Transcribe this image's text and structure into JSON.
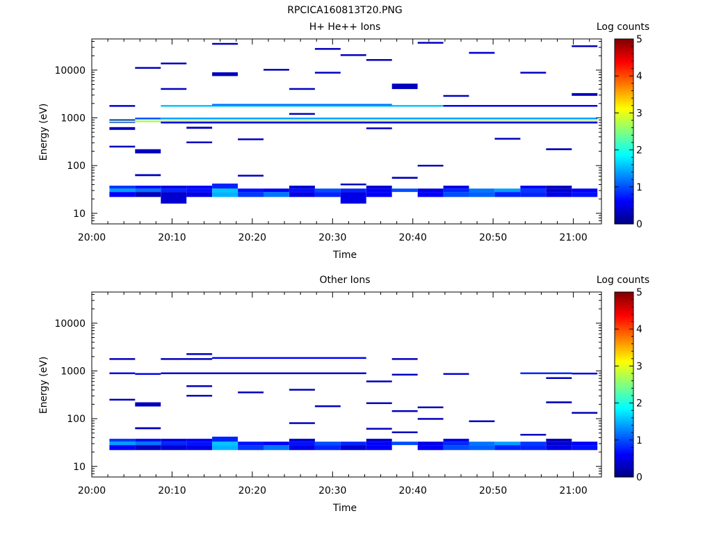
{
  "figure": {
    "title": "RPCICA160813T20.PNG"
  },
  "chart_data": [
    {
      "type": "heatmap",
      "title": "H+ He++ Ions",
      "xlabel": "Time",
      "ylabel": "Energy (eV)",
      "x_ticks": [
        "20:00",
        "20:10",
        "20:20",
        "20:30",
        "20:40",
        "20:50",
        "21:00"
      ],
      "x_tick_minutes": [
        0,
        10,
        20,
        30,
        40,
        50,
        60
      ],
      "xlim_minutes": [
        0,
        63.5
      ],
      "y_scale": "log",
      "ylim": [
        6,
        45000
      ],
      "y_ticks": [
        10,
        100,
        1000,
        10000
      ],
      "y_tick_labels": [
        "10",
        "100",
        "1000",
        "10000"
      ],
      "colorbar": {
        "label": "Log counts",
        "range": [
          0,
          5
        ],
        "ticks": [
          "0",
          "1",
          "2",
          "3",
          "4",
          "5"
        ]
      },
      "time_bins_minutes": [
        2.2,
        5.4,
        8.6,
        11.8,
        15.0,
        18.2,
        21.4,
        24.6,
        27.8,
        31.0,
        34.2,
        37.4,
        40.6,
        43.8,
        47.0,
        50.2,
        53.4,
        56.6,
        59.8,
        63.0
      ],
      "cells": [
        [
          2.2,
          5.4,
          22,
          28,
          0.6
        ],
        [
          5.4,
          8.6,
          22,
          28,
          0.3
        ],
        [
          8.6,
          11.8,
          16,
          28,
          0.4
        ],
        [
          11.8,
          15.0,
          22,
          28,
          0.5
        ],
        [
          15.0,
          18.2,
          22,
          28,
          1.5
        ],
        [
          18.2,
          21.4,
          22,
          28,
          0.9
        ],
        [
          21.4,
          24.6,
          22,
          28,
          1.2
        ],
        [
          24.6,
          27.8,
          22,
          28,
          0.5
        ],
        [
          27.8,
          31.0,
          22,
          28,
          0.8
        ],
        [
          31.0,
          34.2,
          16,
          28,
          0.5
        ],
        [
          34.2,
          37.4,
          22,
          28,
          0.6
        ],
        [
          40.6,
          43.8,
          22,
          28,
          0.6
        ],
        [
          43.8,
          47.0,
          22,
          28,
          1.0
        ],
        [
          47.0,
          50.2,
          22,
          28,
          1.1
        ],
        [
          50.2,
          53.4,
          22,
          28,
          0.8
        ],
        [
          53.4,
          56.6,
          22,
          28,
          0.8
        ],
        [
          56.6,
          59.8,
          22,
          28,
          0.5
        ],
        [
          59.8,
          63.0,
          22,
          28,
          0.7
        ],
        [
          2.2,
          5.4,
          28,
          33,
          1.4
        ],
        [
          5.4,
          8.6,
          28,
          33,
          1.2
        ],
        [
          8.6,
          11.8,
          28,
          33,
          0.8
        ],
        [
          11.8,
          15.0,
          28,
          33,
          0.7
        ],
        [
          15.0,
          18.2,
          28,
          33,
          1.6
        ],
        [
          18.2,
          21.4,
          28,
          33,
          0.7
        ],
        [
          21.4,
          24.6,
          28,
          33,
          0.6
        ],
        [
          24.6,
          27.8,
          28,
          33,
          0.7
        ],
        [
          27.8,
          31.0,
          28,
          33,
          1.0
        ],
        [
          31.0,
          34.2,
          28,
          33,
          0.8
        ],
        [
          34.2,
          37.4,
          28,
          33,
          0.6
        ],
        [
          37.4,
          40.6,
          28,
          33,
          1.0
        ],
        [
          40.6,
          43.8,
          28,
          33,
          0.5
        ],
        [
          43.8,
          47.0,
          28,
          33,
          0.8
        ],
        [
          47.0,
          50.2,
          28,
          33,
          1.2
        ],
        [
          50.2,
          53.4,
          28,
          33,
          1.4
        ],
        [
          53.4,
          56.6,
          28,
          33,
          0.9
        ],
        [
          56.6,
          59.8,
          28,
          33,
          0.4
        ],
        [
          59.8,
          63.0,
          28,
          33,
          0.6
        ],
        [
          2.2,
          5.4,
          33,
          38,
          0.9
        ],
        [
          5.4,
          8.6,
          33,
          38,
          0.7
        ],
        [
          8.6,
          11.8,
          33,
          38,
          0.5
        ],
        [
          11.8,
          15.0,
          33,
          38,
          0.6
        ],
        [
          15.0,
          18.2,
          33,
          42,
          0.8
        ],
        [
          24.6,
          27.8,
          33,
          38,
          0.4
        ],
        [
          34.2,
          37.4,
          33,
          38,
          0.4
        ],
        [
          43.8,
          47.0,
          33,
          38,
          0.5
        ],
        [
          53.4,
          56.6,
          33,
          38,
          0.6
        ],
        [
          56.6,
          59.8,
          33,
          38,
          0.3
        ],
        [
          2.2,
          5.4,
          780,
          930,
          0.7
        ],
        [
          2.2,
          5.4,
          840,
          880,
          2.6
        ],
        [
          5.4,
          63.0,
          840,
          880,
          2.7
        ],
        [
          8.6,
          63.0,
          930,
          1010,
          1.4
        ],
        [
          5.4,
          8.6,
          930,
          1010,
          1.0
        ],
        [
          8.6,
          63.0,
          780,
          830,
          0.5
        ],
        [
          8.6,
          43.8,
          1760,
          1860,
          1.6
        ],
        [
          15.0,
          37.4,
          1860,
          1960,
          1.2
        ],
        [
          43.8,
          63.0,
          1760,
          1860,
          0.6
        ],
        [
          2.2,
          5.4,
          1750,
          1850,
          0.4
        ],
        [
          2.2,
          5.4,
          240,
          260,
          0.3
        ],
        [
          2.2,
          5.4,
          560,
          640,
          0.3
        ],
        [
          5.4,
          8.6,
          180,
          220,
          0.3
        ],
        [
          5.4,
          8.6,
          60,
          66,
          0.3
        ],
        [
          5.4,
          8.6,
          11000,
          11600,
          0.3
        ],
        [
          8.6,
          11.8,
          13500,
          14400,
          0.3
        ],
        [
          8.6,
          11.8,
          3900,
          4200,
          0.3
        ],
        [
          11.8,
          15.0,
          300,
          320,
          0.3
        ],
        [
          11.8,
          15.0,
          590,
          650,
          0.3
        ],
        [
          15.0,
          18.2,
          35000,
          37000,
          0.3
        ],
        [
          15.0,
          18.2,
          7500,
          9000,
          0.3
        ],
        [
          18.2,
          21.4,
          340,
          370,
          0.3
        ],
        [
          18.2,
          21.4,
          60,
          64,
          0.3
        ],
        [
          21.4,
          24.6,
          10000,
          10600,
          0.3
        ],
        [
          24.6,
          27.8,
          1180,
          1260,
          0.3
        ],
        [
          24.6,
          27.8,
          3900,
          4200,
          0.3
        ],
        [
          27.8,
          31.0,
          27000,
          29000,
          0.3
        ],
        [
          27.8,
          31.0,
          8700,
          9200,
          0.3
        ],
        [
          31.0,
          34.2,
          20500,
          21500,
          0.3
        ],
        [
          31.0,
          34.2,
          39,
          42,
          0.3
        ],
        [
          34.2,
          37.4,
          16000,
          17000,
          0.3
        ],
        [
          34.2,
          37.4,
          590,
          630,
          0.3
        ],
        [
          37.4,
          40.6,
          4000,
          5200,
          0.3
        ],
        [
          37.4,
          40.6,
          53,
          58,
          0.3
        ],
        [
          40.6,
          43.8,
          37000,
          39000,
          0.3
        ],
        [
          40.6,
          43.8,
          98,
          104,
          0.3
        ],
        [
          43.8,
          47.0,
          2800,
          3000,
          0.3
        ],
        [
          47.0,
          50.2,
          22000,
          24000,
          0.4
        ],
        [
          50.2,
          53.4,
          350,
          380,
          0.3
        ],
        [
          53.4,
          56.6,
          8800,
          9200,
          0.3
        ],
        [
          56.6,
          59.8,
          210,
          230,
          0.3
        ],
        [
          59.8,
          63.0,
          31000,
          33000,
          0.3
        ],
        [
          59.8,
          63.0,
          2900,
          3300,
          0.3
        ]
      ]
    },
    {
      "type": "heatmap",
      "title": "Other Ions",
      "xlabel": "Time",
      "ylabel": "Energy (eV)",
      "x_ticks": [
        "20:00",
        "20:10",
        "20:20",
        "20:30",
        "20:40",
        "20:50",
        "21:00"
      ],
      "x_tick_minutes": [
        0,
        10,
        20,
        30,
        40,
        50,
        60
      ],
      "xlim_minutes": [
        0,
        63.5
      ],
      "y_scale": "log",
      "ylim": [
        6,
        45000
      ],
      "y_ticks": [
        10,
        100,
        1000,
        10000
      ],
      "y_tick_labels": [
        "10",
        "100",
        "1000",
        "10000"
      ],
      "colorbar": {
        "label": "Log counts",
        "range": [
          0,
          5
        ],
        "ticks": [
          "0",
          "1",
          "2",
          "3",
          "4",
          "5"
        ]
      },
      "time_bins_minutes": [
        2.2,
        5.4,
        8.6,
        11.8,
        15.0,
        18.2,
        21.4,
        24.6,
        27.8,
        31.0,
        34.2,
        37.4,
        40.6,
        43.8,
        47.0,
        50.2,
        53.4,
        56.6,
        59.8,
        63.0
      ],
      "cells": [
        [
          2.2,
          5.4,
          22,
          28,
          0.6
        ],
        [
          5.4,
          8.6,
          22,
          28,
          0.3
        ],
        [
          8.6,
          11.8,
          22,
          28,
          0.4
        ],
        [
          11.8,
          15.0,
          22,
          28,
          0.5
        ],
        [
          15.0,
          18.2,
          22,
          28,
          1.5
        ],
        [
          18.2,
          21.4,
          22,
          28,
          0.9
        ],
        [
          21.4,
          24.6,
          22,
          28,
          1.2
        ],
        [
          24.6,
          27.8,
          22,
          28,
          0.5
        ],
        [
          27.8,
          31.0,
          22,
          28,
          0.8
        ],
        [
          31.0,
          34.2,
          22,
          28,
          0.4
        ],
        [
          34.2,
          37.4,
          22,
          28,
          0.6
        ],
        [
          40.6,
          43.8,
          22,
          28,
          0.6
        ],
        [
          43.8,
          47.0,
          22,
          28,
          1.0
        ],
        [
          47.0,
          50.2,
          22,
          28,
          1.1
        ],
        [
          50.2,
          53.4,
          22,
          28,
          0.8
        ],
        [
          53.4,
          56.6,
          22,
          28,
          0.8
        ],
        [
          56.6,
          59.8,
          22,
          28,
          0.5
        ],
        [
          59.8,
          63.0,
          22,
          28,
          0.7
        ],
        [
          2.2,
          5.4,
          28,
          33,
          1.4
        ],
        [
          5.4,
          8.6,
          28,
          33,
          1.2
        ],
        [
          8.6,
          11.8,
          28,
          33,
          0.8
        ],
        [
          11.8,
          15.0,
          28,
          33,
          0.7
        ],
        [
          15.0,
          18.2,
          28,
          33,
          1.6
        ],
        [
          18.2,
          21.4,
          28,
          33,
          0.7
        ],
        [
          21.4,
          24.6,
          28,
          33,
          0.6
        ],
        [
          24.6,
          27.8,
          28,
          33,
          0.7
        ],
        [
          27.8,
          31.0,
          28,
          33,
          1.0
        ],
        [
          31.0,
          34.2,
          28,
          33,
          0.8
        ],
        [
          34.2,
          37.4,
          28,
          33,
          0.6
        ],
        [
          37.4,
          40.6,
          28,
          33,
          1.0
        ],
        [
          40.6,
          43.8,
          28,
          33,
          0.5
        ],
        [
          43.8,
          47.0,
          28,
          33,
          0.8
        ],
        [
          47.0,
          50.2,
          28,
          33,
          1.2
        ],
        [
          50.2,
          53.4,
          28,
          33,
          1.4
        ],
        [
          53.4,
          56.6,
          28,
          33,
          0.9
        ],
        [
          56.6,
          59.8,
          28,
          33,
          0.4
        ],
        [
          59.8,
          63.0,
          28,
          33,
          0.6
        ],
        [
          2.2,
          5.4,
          33,
          38,
          0.9
        ],
        [
          5.4,
          8.6,
          33,
          38,
          0.7
        ],
        [
          8.6,
          11.8,
          33,
          38,
          0.5
        ],
        [
          11.8,
          15.0,
          33,
          38,
          0.6
        ],
        [
          15.0,
          18.2,
          33,
          42,
          0.8
        ],
        [
          24.6,
          27.8,
          33,
          38,
          0.4
        ],
        [
          34.2,
          37.4,
          33,
          38,
          0.4
        ],
        [
          43.8,
          47.0,
          33,
          38,
          0.5
        ],
        [
          56.6,
          59.8,
          33,
          38,
          0.3
        ],
        [
          2.2,
          5.4,
          880,
          930,
          0.5
        ],
        [
          5.4,
          8.6,
          860,
          900,
          0.5
        ],
        [
          8.6,
          34.2,
          880,
          930,
          0.4
        ],
        [
          15.0,
          34.2,
          1850,
          1950,
          0.6
        ],
        [
          8.6,
          15.0,
          1750,
          1850,
          0.3
        ],
        [
          53.4,
          59.8,
          880,
          930,
          0.8
        ],
        [
          59.8,
          63.0,
          850,
          920,
          0.5
        ],
        [
          43.8,
          47.0,
          850,
          900,
          0.4
        ],
        [
          37.4,
          40.6,
          830,
          870,
          0.3
        ],
        [
          37.4,
          40.6,
          1750,
          1850,
          0.3
        ],
        [
          2.2,
          5.4,
          1750,
          1850,
          0.3
        ],
        [
          11.8,
          15.0,
          2200,
          2350,
          0.3
        ],
        [
          2.2,
          5.4,
          240,
          260,
          0.3
        ],
        [
          5.4,
          8.6,
          180,
          220,
          0.3
        ],
        [
          5.4,
          8.6,
          60,
          66,
          0.3
        ],
        [
          11.8,
          15.0,
          460,
          500,
          0.3
        ],
        [
          11.8,
          15.0,
          295,
          315,
          0.3
        ],
        [
          18.2,
          21.4,
          340,
          370,
          0.3
        ],
        [
          24.6,
          27.8,
          400,
          420,
          0.3
        ],
        [
          24.6,
          27.8,
          80,
          84,
          0.3
        ],
        [
          27.8,
          31.0,
          180,
          190,
          0.3
        ],
        [
          34.2,
          37.4,
          590,
          630,
          0.3
        ],
        [
          34.2,
          37.4,
          210,
          220,
          0.3
        ],
        [
          34.2,
          37.4,
          60,
          64,
          0.3
        ],
        [
          37.4,
          40.6,
          140,
          150,
          0.3
        ],
        [
          37.4,
          40.6,
          50,
          54,
          0.3
        ],
        [
          40.6,
          43.8,
          170,
          180,
          0.3
        ],
        [
          40.6,
          43.8,
          97,
          103,
          0.3
        ],
        [
          47.0,
          50.2,
          88,
          92,
          0.3
        ],
        [
          53.4,
          56.6,
          46,
          48,
          0.3
        ],
        [
          56.6,
          59.8,
          700,
          740,
          0.3
        ],
        [
          56.6,
          59.8,
          210,
          230,
          0.3
        ],
        [
          59.8,
          63.0,
          130,
          138,
          0.3
        ]
      ]
    }
  ]
}
